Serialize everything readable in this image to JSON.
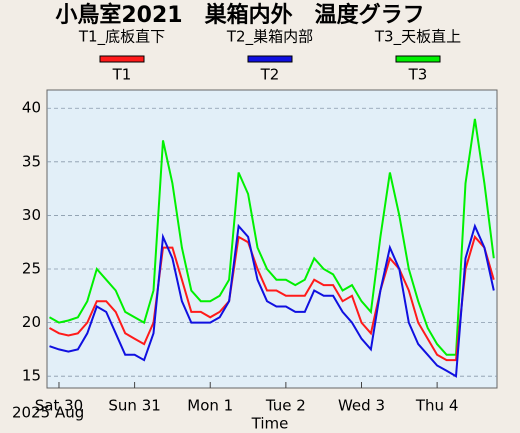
{
  "chart_data": {
    "type": "line",
    "title": "小鳥室2021　巣箱内外　温度グラフ",
    "series_descriptions": [
      "T1_底板直下",
      "T2_巣箱内部",
      "T3_天板直上"
    ],
    "xlabel": "Time",
    "date_label": "2025 Aug",
    "x": [
      -3,
      0,
      3,
      6,
      9,
      12,
      15,
      18,
      21,
      24,
      27,
      30,
      33,
      36,
      39,
      42,
      45,
      48,
      51,
      54,
      57,
      60,
      63,
      66,
      69,
      72,
      75,
      78,
      81,
      84,
      87,
      90,
      93,
      96,
      99,
      102,
      105,
      108,
      111,
      114,
      117,
      120,
      123,
      126,
      129,
      132,
      135,
      138
    ],
    "series": [
      {
        "name": "T3",
        "color": "#00f000",
        "values": [
          20.5,
          20,
          20.2,
          20.5,
          22,
          25,
          24,
          23,
          21,
          20.5,
          20,
          23,
          37,
          33,
          27,
          23,
          22,
          22,
          22.5,
          24,
          34,
          32,
          27,
          25,
          24,
          24,
          23.5,
          24,
          26,
          25,
          24.5,
          23,
          23.5,
          22,
          21,
          28,
          34,
          30,
          25,
          22,
          19.5,
          18,
          17,
          17,
          33,
          39,
          33,
          26
        ]
      },
      {
        "name": "T1",
        "color": "#ff1a1a",
        "values": [
          19.5,
          19,
          18.8,
          19,
          20,
          22,
          22,
          21,
          19,
          18.5,
          18,
          20,
          27,
          27,
          24,
          21,
          21,
          20.5,
          21,
          22,
          28,
          27.5,
          25,
          23,
          23,
          22.5,
          22.5,
          22.5,
          24,
          23.5,
          23.5,
          22,
          22.5,
          20,
          19,
          23,
          26,
          25,
          23,
          20,
          18.5,
          17,
          16.5,
          16.5,
          25,
          28,
          27,
          24
        ]
      },
      {
        "name": "T2",
        "color": "#1010e0",
        "values": [
          17.8,
          17.5,
          17.3,
          17.5,
          19,
          21.5,
          21,
          19,
          17,
          17,
          16.5,
          19,
          28,
          26,
          22,
          20,
          20,
          20,
          20.5,
          22,
          29,
          28,
          24,
          22,
          21.5,
          21.5,
          21,
          21,
          23,
          22.5,
          22.5,
          21,
          20,
          18.5,
          17.5,
          23,
          27,
          25,
          20,
          18,
          17,
          16,
          15.5,
          15,
          26,
          29,
          27,
          23
        ]
      }
    ],
    "xlim": [
      -3.8,
      139
    ],
    "xticks": [
      {
        "value": 0,
        "label": "Sat 30"
      },
      {
        "value": 24,
        "label": "Sun 31"
      },
      {
        "value": 48,
        "label": "Mon 1"
      },
      {
        "value": 72,
        "label": "Tue 2"
      },
      {
        "value": 96,
        "label": "Wed 3"
      },
      {
        "value": 120,
        "label": "Thu 4"
      }
    ],
    "ylim": [
      13.9,
      41.7
    ],
    "yticks": [
      15,
      20,
      25,
      30,
      35,
      40
    ],
    "grid": true
  }
}
